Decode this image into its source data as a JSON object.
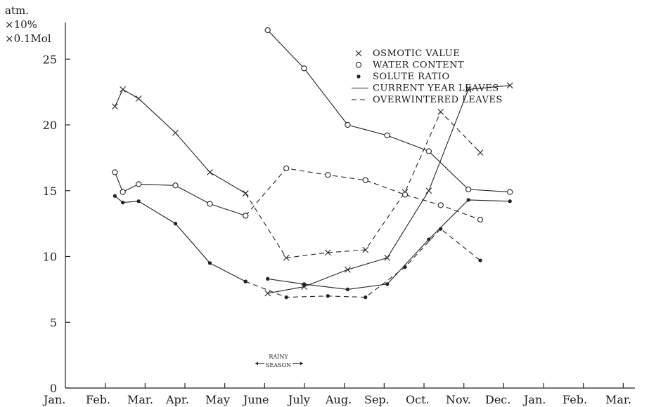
{
  "chart_data": {
    "type": "line",
    "ylabel_lines": [
      "atm.",
      "×10%",
      "×0.1Mol"
    ],
    "ylim": [
      0,
      27.5
    ],
    "yticks": [
      0,
      5,
      10,
      15,
      20,
      25
    ],
    "xlim": [
      1,
      15.5
    ],
    "categories": [
      "Jan.",
      "Feb.",
      "Mar.",
      "Apr.",
      "May",
      "June",
      "July",
      "Aug.",
      "Sep.",
      "Oct.",
      "Nov.",
      "Dec.",
      "Jan.",
      "Feb.",
      "Mar."
    ],
    "legend": {
      "markers": [
        {
          "symbol": "x",
          "label": "OSMOTIC VALUE"
        },
        {
          "symbol": "o",
          "label": "WATER CONTENT"
        },
        {
          "symbol": "dot",
          "label": "SOLUTE RATIO"
        }
      ],
      "lines": [
        {
          "style": "solid",
          "label": "CURRENT YEAR LEAVES"
        },
        {
          "style": "dashed",
          "label": "OVERWINTERED LEAVES"
        }
      ]
    },
    "annotation": {
      "line1": "RAINY",
      "line2": "SEASON"
    },
    "series": [
      {
        "marker": "x",
        "style": "solid",
        "points": [
          [
            5.08,
            7.2
          ],
          [
            6.0,
            7.7
          ],
          [
            7.1,
            9.0
          ],
          [
            8.1,
            9.9
          ],
          [
            9.15,
            15.0
          ],
          [
            10.15,
            22.7
          ],
          [
            11.2,
            23.0
          ]
        ]
      },
      {
        "marker": "x",
        "style": "solid",
        "points": [
          [
            1.22,
            21.4
          ],
          [
            1.42,
            22.7
          ],
          [
            1.82,
            22.0
          ],
          [
            2.75,
            19.4
          ],
          [
            3.62,
            16.4
          ],
          [
            4.52,
            14.8
          ]
        ]
      },
      {
        "marker": "x",
        "style": "dashed",
        "points": [
          [
            4.52,
            14.8
          ],
          [
            5.55,
            9.9
          ],
          [
            6.6,
            10.3
          ],
          [
            7.55,
            10.5
          ],
          [
            8.55,
            14.9
          ],
          [
            9.45,
            21.0
          ],
          [
            10.45,
            17.9
          ]
        ]
      },
      {
        "marker": "o",
        "style": "solid",
        "points": [
          [
            5.08,
            27.2
          ],
          [
            6.0,
            24.3
          ],
          [
            7.1,
            20.0
          ],
          [
            8.1,
            19.2
          ],
          [
            9.15,
            18.0
          ],
          [
            10.15,
            15.1
          ],
          [
            11.2,
            14.9
          ]
        ]
      },
      {
        "marker": "o",
        "style": "solid",
        "points": [
          [
            1.22,
            16.4
          ],
          [
            1.42,
            14.9
          ],
          [
            1.82,
            15.5
          ],
          [
            2.75,
            15.4
          ],
          [
            3.62,
            14.0
          ],
          [
            4.52,
            13.1
          ]
        ]
      },
      {
        "marker": "o",
        "style": "dashed",
        "points": [
          [
            4.52,
            13.1
          ],
          [
            5.55,
            16.7
          ],
          [
            6.6,
            16.2
          ],
          [
            7.55,
            15.8
          ],
          [
            8.55,
            14.7
          ],
          [
            9.45,
            13.9
          ],
          [
            10.45,
            12.8
          ]
        ]
      },
      {
        "marker": "dot",
        "style": "solid",
        "points": [
          [
            5.08,
            8.3
          ],
          [
            6.0,
            7.9
          ],
          [
            7.1,
            7.5
          ],
          [
            8.1,
            7.9
          ],
          [
            9.15,
            11.3
          ],
          [
            10.15,
            14.3
          ],
          [
            11.2,
            14.2
          ]
        ]
      },
      {
        "marker": "dot",
        "style": "solid",
        "points": [
          [
            1.22,
            14.6
          ],
          [
            1.42,
            14.1
          ],
          [
            1.82,
            14.2
          ],
          [
            2.75,
            12.5
          ],
          [
            3.62,
            9.5
          ],
          [
            4.52,
            8.1
          ]
        ]
      },
      {
        "marker": "dot",
        "style": "dashed",
        "points": [
          [
            4.52,
            8.1
          ],
          [
            5.55,
            6.9
          ],
          [
            6.6,
            7.0
          ],
          [
            7.55,
            6.9
          ],
          [
            8.55,
            9.2
          ],
          [
            9.45,
            12.1
          ],
          [
            10.45,
            9.7
          ]
        ]
      }
    ]
  }
}
